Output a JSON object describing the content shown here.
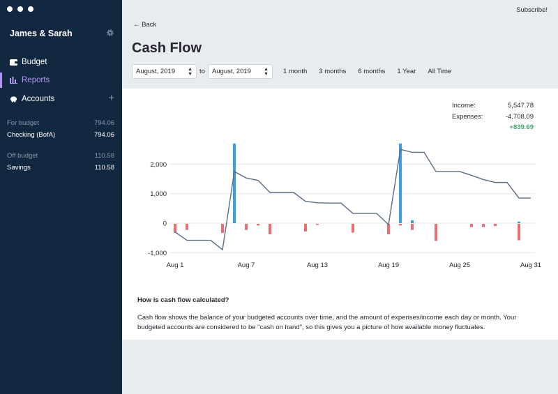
{
  "sidebar": {
    "budget_name": "James & Sarah",
    "nav": [
      {
        "label": "Budget",
        "icon": "wallet-icon"
      },
      {
        "label": "Reports",
        "icon": "bar-chart-icon"
      },
      {
        "label": "Accounts",
        "icon": "piggy-bank-icon"
      }
    ],
    "groups": [
      {
        "name": "For budget",
        "total": "794.06",
        "accounts": [
          {
            "name": "Checking (BofA)",
            "balance": "794.06"
          }
        ]
      },
      {
        "name": "Off budget",
        "total": "110.58",
        "accounts": [
          {
            "name": "Savings",
            "balance": "110.58"
          }
        ]
      }
    ]
  },
  "header": {
    "subscribe": "Subscribe!",
    "back": "← Back",
    "title": "Cash Flow"
  },
  "controls": {
    "from": "August, 2019",
    "to_label": "to",
    "to": "August, 2019",
    "ranges": [
      "1 month",
      "3 months",
      "6 months",
      "1 Year",
      "All Time"
    ]
  },
  "totals": {
    "income_label": "Income:",
    "income": "5,547.78",
    "expenses_label": "Expenses:",
    "expenses": "-4,708.09",
    "net": "+839.69"
  },
  "colors": {
    "sidebar_bg": "#122841",
    "accent": "#b795f5",
    "income_bar": "#3d9edd",
    "expense_bar": "#ec6d71",
    "balance_line": "#5a6c85",
    "positive": "#40a86e"
  },
  "chart_data": {
    "type": "bar+line",
    "x_ticks": [
      "Aug 1",
      "Aug 7",
      "Aug 13",
      "Aug 19",
      "Aug 25",
      "Aug 31"
    ],
    "y_ticks": [
      "2,000",
      "1,000",
      "0",
      "-1,000"
    ],
    "ylim": [
      -1000,
      2700
    ],
    "days": [
      1,
      2,
      3,
      4,
      5,
      6,
      7,
      8,
      9,
      10,
      11,
      12,
      13,
      14,
      15,
      16,
      17,
      18,
      19,
      20,
      21,
      22,
      23,
      24,
      25,
      26,
      27,
      28,
      29,
      30,
      31
    ],
    "series": [
      {
        "name": "Balance",
        "type": "line",
        "values": [
          -300,
          -580,
          -580,
          -580,
          -900,
          1750,
          1530,
          1450,
          1040,
          1040,
          1040,
          740,
          690,
          680,
          680,
          330,
          330,
          330,
          -50,
          2500,
          2400,
          2400,
          1750,
          1750,
          1750,
          1620,
          1480,
          1380,
          1380,
          850,
          850
        ]
      },
      {
        "name": "Income",
        "type": "bar",
        "values": [
          0,
          0,
          0,
          0,
          0,
          2700,
          0,
          0,
          0,
          0,
          0,
          0,
          0,
          0,
          0,
          0,
          0,
          0,
          0,
          2700,
          100,
          0,
          0,
          0,
          0,
          0,
          0,
          0,
          0,
          50,
          0
        ]
      },
      {
        "name": "Expenses",
        "type": "bar",
        "values": [
          -330,
          -230,
          0,
          0,
          -330,
          0,
          -230,
          -80,
          -380,
          0,
          0,
          -280,
          -60,
          -20,
          0,
          -320,
          0,
          0,
          -380,
          -80,
          -230,
          -20,
          -600,
          0,
          0,
          -130,
          -130,
          -100,
          0,
          -580,
          0
        ]
      }
    ],
    "grid": true
  },
  "explain": {
    "heading": "How is cash flow calculated?",
    "body": "Cash flow shows the balance of your budgeted accounts over time, and the amount of expenses/income each day or month. Your budgeted accounts are considered to be \"cash on hand\", so this gives you a picture of how available money fluctuates."
  }
}
